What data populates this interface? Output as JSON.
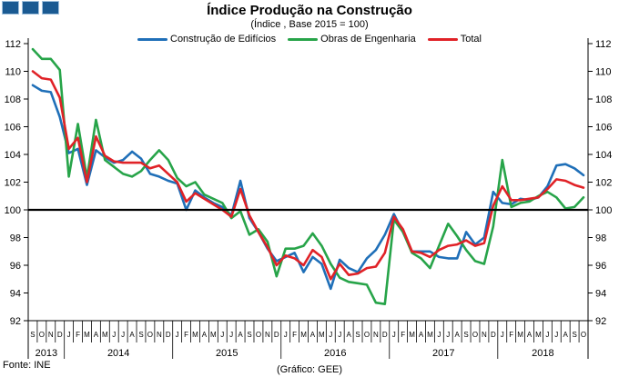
{
  "header": {
    "title": "Índice Produção na Construção",
    "subtitle": "(Índice , Base 2015 = 100)",
    "logo": "three-blue-squares",
    "logo_fill": "#1a5a92",
    "logo_border": "#9fc0dc"
  },
  "legend": [
    {
      "label": "Construção de Edifícios",
      "color": "#1f6fb8"
    },
    {
      "label": "Obras de Engenharia",
      "color": "#27a449"
    },
    {
      "label": "Total",
      "color": "#e02227"
    }
  ],
  "footer": {
    "source": "Fonte: INE",
    "credit": "(Gráfico: GEE)"
  },
  "chart_data": {
    "type": "line",
    "title": "Índice Produção na Construção",
    "subtitle": "(Índice , Base 2015 = 100)",
    "xlabel": "",
    "ylabel": "",
    "ylim": [
      92,
      112
    ],
    "ytick_step": 2,
    "grid": false,
    "legend_position": "top",
    "baseline_value": 100,
    "baseline_color": "#000000",
    "axis_color": "#000000",
    "x_months": [
      "S",
      "O",
      "N",
      "D",
      "J",
      "F",
      "M",
      "A",
      "M",
      "J",
      "J",
      "A",
      "S",
      "O",
      "N",
      "D",
      "J",
      "F",
      "M",
      "A",
      "M",
      "J",
      "J",
      "A",
      "S",
      "O",
      "N",
      "D",
      "J",
      "F",
      "M",
      "A",
      "M",
      "J",
      "J",
      "A",
      "S",
      "O",
      "N",
      "D",
      "J",
      "F",
      "M",
      "A",
      "M",
      "J",
      "J",
      "A",
      "S",
      "O",
      "N",
      "D",
      "J",
      "F",
      "M",
      "A",
      "M",
      "J",
      "J",
      "A",
      "S",
      "O"
    ],
    "x_years": [
      {
        "label": "2013",
        "months": 4
      },
      {
        "label": "2014",
        "months": 12
      },
      {
        "label": "2015",
        "months": 12
      },
      {
        "label": "2016",
        "months": 12
      },
      {
        "label": "2017",
        "months": 12
      },
      {
        "label": "2018",
        "months": 10
      }
    ],
    "series": [
      {
        "name": "Construção de Edifícios",
        "color": "#1f6fb8",
        "values": [
          109.0,
          108.6,
          108.5,
          106.7,
          104.1,
          104.4,
          101.8,
          104.3,
          103.8,
          103.4,
          103.6,
          104.2,
          103.7,
          102.6,
          102.4,
          102.1,
          101.9,
          100.0,
          101.4,
          100.9,
          100.5,
          100.2,
          99.6,
          102.1,
          99.4,
          98.4,
          97.2,
          96.3,
          96.6,
          96.9,
          95.5,
          96.6,
          96.1,
          94.3,
          96.4,
          95.8,
          95.5,
          96.5,
          97.1,
          98.2,
          99.7,
          98.4,
          97.0,
          97.0,
          97.0,
          96.6,
          96.5,
          96.5,
          98.4,
          97.5,
          98.0,
          101.3,
          100.5,
          100.4,
          100.8,
          100.7,
          100.9,
          101.7,
          103.2,
          103.3,
          103.0,
          102.5
        ]
      },
      {
        "name": "Obras de Engenharia",
        "color": "#27a449",
        "values": [
          111.6,
          110.9,
          110.9,
          110.1,
          102.4,
          106.2,
          102.3,
          106.5,
          103.6,
          103.1,
          102.6,
          102.4,
          102.8,
          103.6,
          104.3,
          103.6,
          102.3,
          101.7,
          102.0,
          101.1,
          100.8,
          100.5,
          99.4,
          99.9,
          98.2,
          98.6,
          97.7,
          95.2,
          97.2,
          97.2,
          97.4,
          98.3,
          97.4,
          96.1,
          95.1,
          94.8,
          94.7,
          94.6,
          93.3,
          93.2,
          99.3,
          98.4,
          96.9,
          96.5,
          95.8,
          97.4,
          99.0,
          98.1,
          97.1,
          96.3,
          96.1,
          98.8,
          103.6,
          100.2,
          100.5,
          100.6,
          101.0,
          101.3,
          100.9,
          100.1,
          100.2,
          100.9
        ]
      },
      {
        "name": "Total",
        "color": "#e02227",
        "values": [
          110.0,
          109.5,
          109.4,
          108.1,
          104.4,
          105.2,
          102.0,
          105.3,
          103.9,
          103.5,
          103.4,
          103.4,
          103.4,
          103.0,
          103.2,
          102.6,
          102.0,
          100.6,
          101.2,
          100.8,
          100.4,
          100.0,
          99.5,
          101.5,
          99.6,
          98.4,
          97.3,
          96.0,
          96.7,
          96.5,
          96.0,
          97.1,
          96.6,
          95.0,
          96.1,
          95.3,
          95.4,
          95.8,
          95.9,
          96.9,
          99.5,
          98.6,
          97.0,
          96.9,
          96.6,
          97.1,
          97.4,
          97.5,
          97.8,
          97.4,
          97.6,
          100.3,
          101.7,
          100.7,
          100.7,
          100.8,
          100.9,
          101.5,
          102.2,
          102.1,
          101.8,
          101.6
        ]
      }
    ]
  }
}
